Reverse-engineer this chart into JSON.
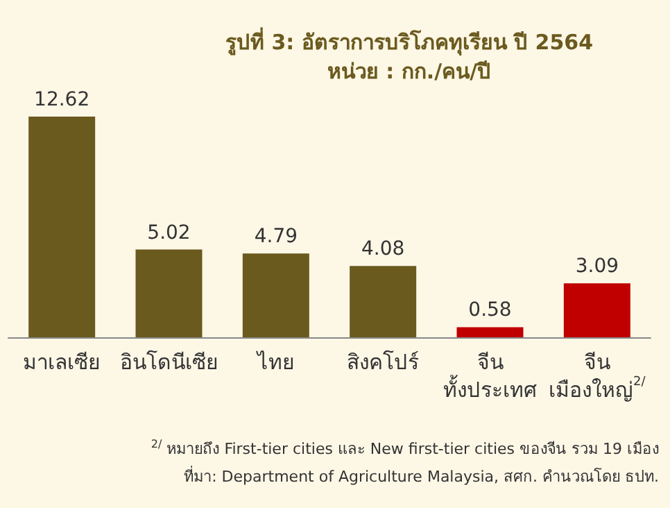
{
  "chart_data": {
    "type": "bar",
    "title": "รูปที่ 3: อัตราการบริโภคทุเรียน ปี 2564",
    "subtitle": "หน่วย : กก./คน/ปี",
    "categories": [
      "มาเลเซีย",
      "อินโดนีเซีย",
      "ไทย",
      "สิงคโปร์",
      "จีน\nทั้งประเทศ",
      "จีน\nเมืองใหญ่$^{2/}$"
    ],
    "values": [
      12.62,
      5.02,
      4.79,
      4.08,
      0.58,
      3.09
    ],
    "colors": [
      "#6b5a1e",
      "#6b5a1e",
      "#6b5a1e",
      "#6b5a1e",
      "#c00000",
      "#c00000"
    ],
    "data_labels": true,
    "annotations": [
      "$^{2/}$ หมายถึง First-tier cities และ New first-tier cities ของจีน รวม 19 เมือง",
      "ที่มา: Department of Agriculture Malaysia, สศก. คำนวณโดย ธปท."
    ]
  }
}
